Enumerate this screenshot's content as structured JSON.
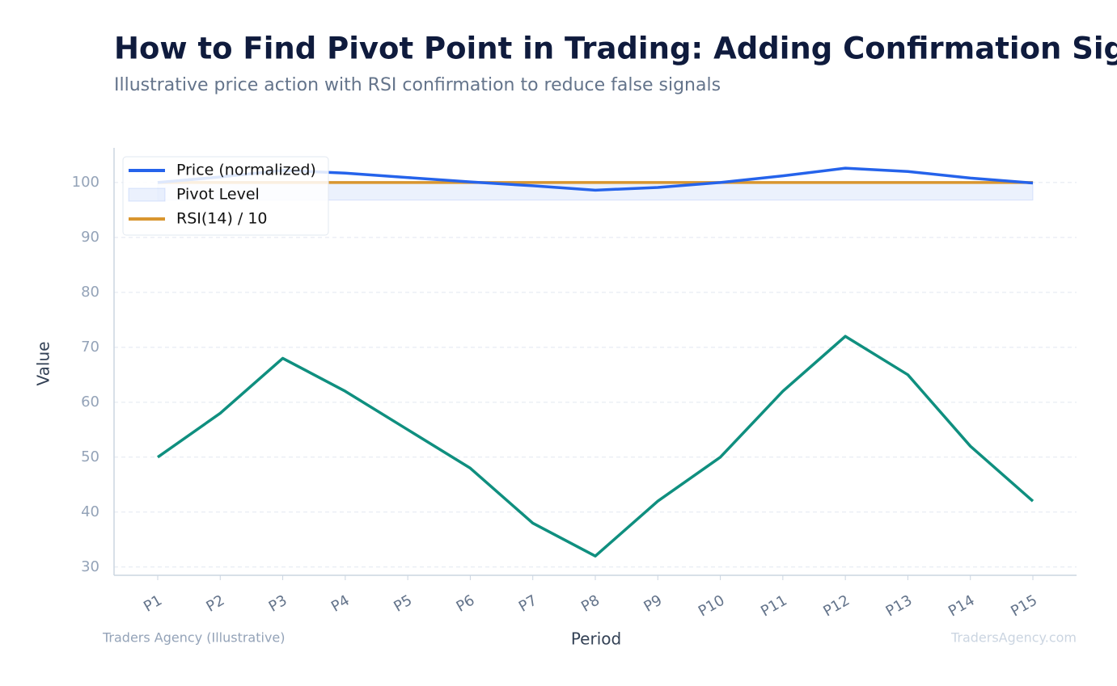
{
  "chart_data": {
    "type": "line",
    "title": "How to Find Pivot Point in Trading: Adding Confirmation Signals",
    "subtitle": "Illustrative price action with RSI confirmation to reduce false signals",
    "x_label": "Period",
    "y_label": "Value",
    "source": "Traders Agency (Illustrative)",
    "watermark": "TradersAgency.com",
    "categories": [
      "P1",
      "P2",
      "P3",
      "P4",
      "P5",
      "P6",
      "P7",
      "P8",
      "P9",
      "P10",
      "P11",
      "P12",
      "P13",
      "P14",
      "P15"
    ],
    "series": [
      {
        "name": "Price (normalized)",
        "color": "#2563eb",
        "values": [
          100,
          101,
          102.2,
          101.7,
          100.9,
          100.1,
          99.4,
          98.6,
          99.1,
          100,
          101.2,
          102.6,
          102,
          100.8,
          99.9
        ]
      },
      {
        "name": "RSI(14) / 10",
        "color": "#d9962f",
        "values": [
          100,
          100,
          100,
          100,
          100,
          100,
          100,
          100,
          100,
          100,
          100,
          100,
          100,
          100,
          100
        ]
      },
      {
        "color": "#0f8f7f",
        "values": [
          50,
          58,
          68,
          62,
          55,
          48,
          38,
          32,
          42,
          50,
          62,
          72,
          65,
          52,
          42
        ]
      }
    ],
    "pivot_band": {
      "name": "Pivot Level",
      "color": "#2563eb",
      "low": 96.8,
      "high": 100.2
    },
    "ylim": [
      28.5,
      106.3
    ],
    "yticks": [
      30,
      40,
      50,
      60,
      70,
      80,
      90,
      100
    ],
    "grid": true,
    "legend": "upper left"
  }
}
